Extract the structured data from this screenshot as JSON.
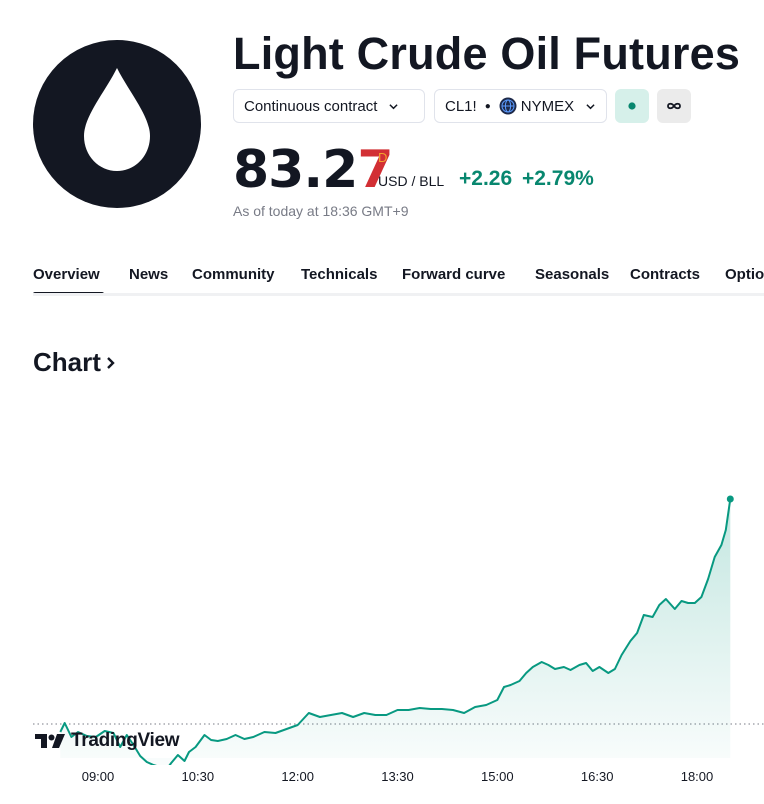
{
  "header": {
    "title": "Light Crude Oil Futures",
    "logo_icon": "oil-drop-icon",
    "contract_label": "Continuous contract",
    "symbol": "CL1!",
    "exchange": "NYMEX",
    "status_color": "#08876f"
  },
  "quote": {
    "price_main": "83.2",
    "price_last": "7",
    "flag": "D",
    "currency": "USD / BLL",
    "change": "+2.26",
    "change_pct": "+2.79%",
    "as_of": "As of today at 18:36 GMT+9",
    "up_color": "#08876f",
    "down_color": "#d22f34"
  },
  "tabs": [
    {
      "label": "Overview",
      "active": true
    },
    {
      "label": "News"
    },
    {
      "label": "Community"
    },
    {
      "label": "Technicals"
    },
    {
      "label": "Forward curve"
    },
    {
      "label": "Seasonals"
    },
    {
      "label": "Contracts"
    },
    {
      "label": "Options"
    }
  ],
  "chart_section": {
    "heading": "Chart",
    "watermark": "TradingView"
  },
  "chart_data": {
    "type": "area",
    "x_labels": [
      "09:00",
      "10:30",
      "12:00",
      "13:30",
      "15:00",
      "16:30",
      "18:00"
    ],
    "x_minutes": [
      540,
      630,
      720,
      810,
      900,
      990,
      1080
    ],
    "y_range": [
      80.5,
      83.5
    ],
    "prev_close": 81.01,
    "points": [
      [
        506,
        80.93
      ],
      [
        510,
        81.02
      ],
      [
        516,
        80.88
      ],
      [
        522,
        80.93
      ],
      [
        530,
        80.89
      ],
      [
        538,
        80.88
      ],
      [
        546,
        80.94
      ],
      [
        554,
        80.92
      ],
      [
        560,
        80.78
      ],
      [
        566,
        80.9
      ],
      [
        572,
        80.8
      ],
      [
        578,
        80.69
      ],
      [
        584,
        80.63
      ],
      [
        590,
        80.6
      ],
      [
        596,
        80.58
      ],
      [
        602,
        80.56
      ],
      [
        606,
        80.62
      ],
      [
        612,
        80.7
      ],
      [
        618,
        80.64
      ],
      [
        622,
        80.73
      ],
      [
        628,
        80.78
      ],
      [
        636,
        80.9
      ],
      [
        642,
        80.85
      ],
      [
        648,
        80.84
      ],
      [
        656,
        80.86
      ],
      [
        664,
        80.9
      ],
      [
        672,
        80.86
      ],
      [
        680,
        80.88
      ],
      [
        690,
        80.93
      ],
      [
        700,
        80.92
      ],
      [
        710,
        80.96
      ],
      [
        720,
        81.0
      ],
      [
        730,
        81.12
      ],
      [
        740,
        81.08
      ],
      [
        750,
        81.1
      ],
      [
        760,
        81.12
      ],
      [
        770,
        81.08
      ],
      [
        780,
        81.12
      ],
      [
        790,
        81.1
      ],
      [
        800,
        81.1
      ],
      [
        810,
        81.15
      ],
      [
        820,
        81.15
      ],
      [
        830,
        81.17
      ],
      [
        840,
        81.16
      ],
      [
        850,
        81.16
      ],
      [
        860,
        81.15
      ],
      [
        870,
        81.12
      ],
      [
        880,
        81.18
      ],
      [
        890,
        81.2
      ],
      [
        900,
        81.25
      ],
      [
        906,
        81.38
      ],
      [
        912,
        81.4
      ],
      [
        920,
        81.44
      ],
      [
        926,
        81.52
      ],
      [
        932,
        81.58
      ],
      [
        940,
        81.63
      ],
      [
        946,
        81.6
      ],
      [
        952,
        81.56
      ],
      [
        960,
        81.58
      ],
      [
        966,
        81.55
      ],
      [
        974,
        81.6
      ],
      [
        980,
        81.62
      ],
      [
        986,
        81.54
      ],
      [
        992,
        81.58
      ],
      [
        1000,
        81.52
      ],
      [
        1006,
        81.56
      ],
      [
        1012,
        81.7
      ],
      [
        1020,
        81.84
      ],
      [
        1026,
        81.92
      ],
      [
        1032,
        82.1
      ],
      [
        1040,
        82.08
      ],
      [
        1046,
        82.2
      ],
      [
        1052,
        82.26
      ],
      [
        1060,
        82.16
      ],
      [
        1066,
        82.24
      ],
      [
        1072,
        82.22
      ],
      [
        1078,
        82.22
      ],
      [
        1084,
        82.28
      ],
      [
        1090,
        82.46
      ],
      [
        1096,
        82.68
      ],
      [
        1102,
        82.8
      ],
      [
        1106,
        82.95
      ],
      [
        1110,
        83.26
      ]
    ],
    "line_color": "#089981"
  }
}
